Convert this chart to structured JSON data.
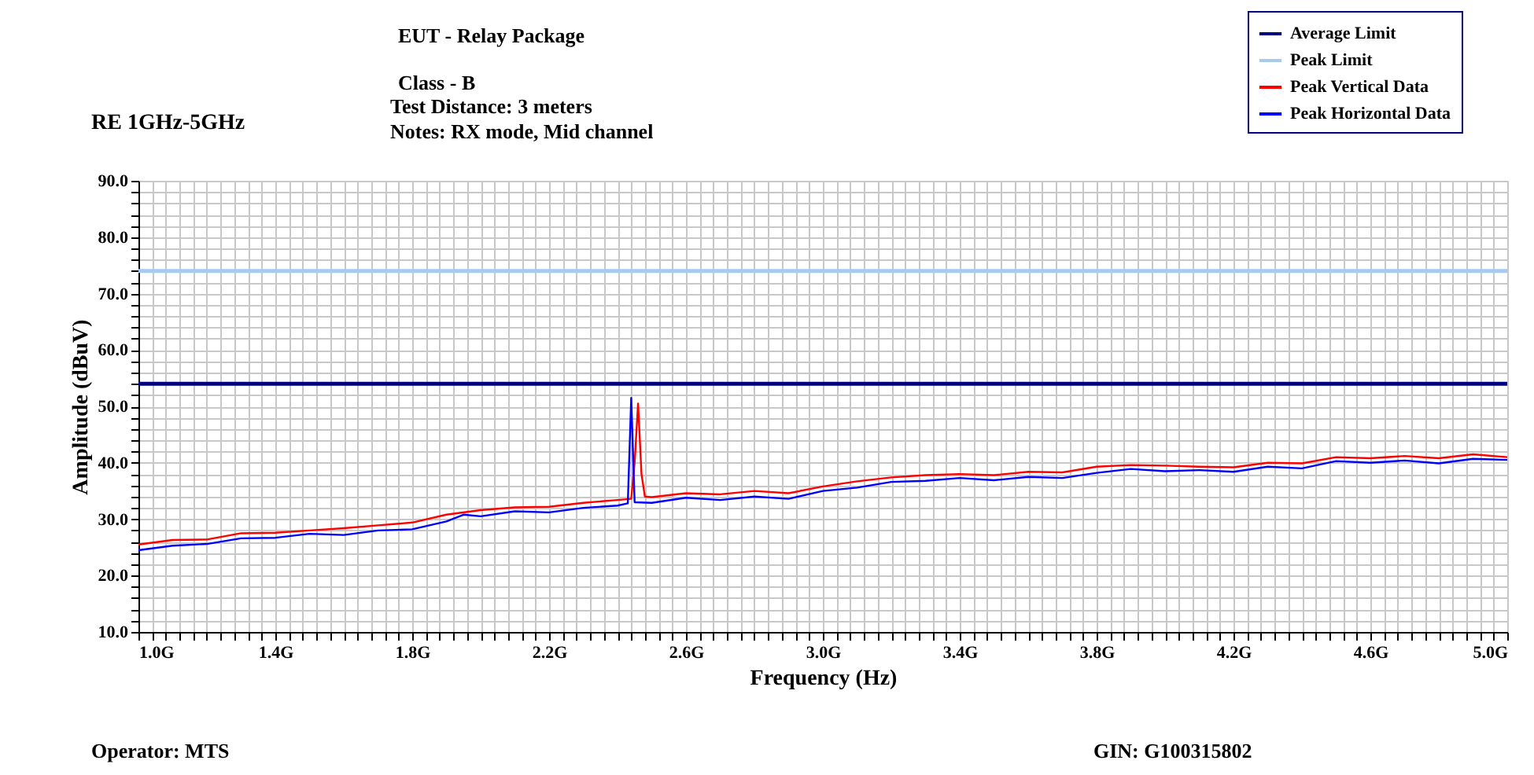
{
  "chart_data": {
    "type": "line",
    "title": "RE 1GHz-5GHz",
    "xlabel": "Frequency (Hz)",
    "ylabel": "Amplitude (dBuV)",
    "xlim": [
      1.0,
      5.0
    ],
    "ylim": [
      10.0,
      90.0
    ],
    "xticks": [
      {
        "value": 1.0,
        "label": "1.0G"
      },
      {
        "value": 1.04,
        "label": null
      },
      {
        "value": 1.08,
        "label": null
      },
      {
        "value": 1.12,
        "label": null
      },
      {
        "value": 1.16,
        "label": null
      },
      {
        "value": 1.2,
        "label": null
      },
      {
        "value": 1.24,
        "label": null
      },
      {
        "value": 1.28,
        "label": null
      },
      {
        "value": 1.32,
        "label": null
      },
      {
        "value": 1.36,
        "label": null
      },
      {
        "value": 1.4,
        "label": "1.4G"
      },
      {
        "value": 1.44,
        "label": null
      },
      {
        "value": 1.48,
        "label": null
      },
      {
        "value": 1.52,
        "label": null
      },
      {
        "value": 1.56,
        "label": null
      },
      {
        "value": 1.6,
        "label": null
      },
      {
        "value": 1.64,
        "label": null
      },
      {
        "value": 1.68,
        "label": null
      },
      {
        "value": 1.72,
        "label": null
      },
      {
        "value": 1.76,
        "label": null
      },
      {
        "value": 1.8,
        "label": "1.8G"
      },
      {
        "value": 1.84,
        "label": null
      },
      {
        "value": 1.88,
        "label": null
      },
      {
        "value": 1.92,
        "label": null
      },
      {
        "value": 1.96,
        "label": null
      },
      {
        "value": 2.0,
        "label": null
      },
      {
        "value": 2.04,
        "label": null
      },
      {
        "value": 2.08,
        "label": null
      },
      {
        "value": 2.12,
        "label": null
      },
      {
        "value": 2.16,
        "label": null
      },
      {
        "value": 2.2,
        "label": "2.2G"
      },
      {
        "value": 2.24,
        "label": null
      },
      {
        "value": 2.28,
        "label": null
      },
      {
        "value": 2.32,
        "label": null
      },
      {
        "value": 2.36,
        "label": null
      },
      {
        "value": 2.4,
        "label": null
      },
      {
        "value": 2.44,
        "label": null
      },
      {
        "value": 2.48,
        "label": null
      },
      {
        "value": 2.52,
        "label": null
      },
      {
        "value": 2.56,
        "label": null
      },
      {
        "value": 2.6,
        "label": "2.6G"
      },
      {
        "value": 2.64,
        "label": null
      },
      {
        "value": 2.68,
        "label": null
      },
      {
        "value": 2.72,
        "label": null
      },
      {
        "value": 2.76,
        "label": null
      },
      {
        "value": 2.8,
        "label": null
      },
      {
        "value": 2.84,
        "label": null
      },
      {
        "value": 2.88,
        "label": null
      },
      {
        "value": 2.92,
        "label": null
      },
      {
        "value": 2.96,
        "label": null
      },
      {
        "value": 3.0,
        "label": "3.0G"
      },
      {
        "value": 3.04,
        "label": null
      },
      {
        "value": 3.08,
        "label": null
      },
      {
        "value": 3.12,
        "label": null
      },
      {
        "value": 3.16,
        "label": null
      },
      {
        "value": 3.2,
        "label": null
      },
      {
        "value": 3.24,
        "label": null
      },
      {
        "value": 3.28,
        "label": null
      },
      {
        "value": 3.32,
        "label": null
      },
      {
        "value": 3.36,
        "label": null
      },
      {
        "value": 3.4,
        "label": "3.4G"
      },
      {
        "value": 3.44,
        "label": null
      },
      {
        "value": 3.48,
        "label": null
      },
      {
        "value": 3.52,
        "label": null
      },
      {
        "value": 3.56,
        "label": null
      },
      {
        "value": 3.6,
        "label": null
      },
      {
        "value": 3.64,
        "label": null
      },
      {
        "value": 3.68,
        "label": null
      },
      {
        "value": 3.72,
        "label": null
      },
      {
        "value": 3.76,
        "label": null
      },
      {
        "value": 3.8,
        "label": "3.8G"
      },
      {
        "value": 3.84,
        "label": null
      },
      {
        "value": 3.88,
        "label": null
      },
      {
        "value": 3.92,
        "label": null
      },
      {
        "value": 3.96,
        "label": null
      },
      {
        "value": 4.0,
        "label": null
      },
      {
        "value": 4.04,
        "label": null
      },
      {
        "value": 4.08,
        "label": null
      },
      {
        "value": 4.12,
        "label": null
      },
      {
        "value": 4.16,
        "label": null
      },
      {
        "value": 4.2,
        "label": "4.2G"
      },
      {
        "value": 4.24,
        "label": null
      },
      {
        "value": 4.28,
        "label": null
      },
      {
        "value": 4.32,
        "label": null
      },
      {
        "value": 4.36,
        "label": null
      },
      {
        "value": 4.4,
        "label": null
      },
      {
        "value": 4.44,
        "label": null
      },
      {
        "value": 4.48,
        "label": null
      },
      {
        "value": 4.52,
        "label": null
      },
      {
        "value": 4.56,
        "label": null
      },
      {
        "value": 4.6,
        "label": "4.6G"
      },
      {
        "value": 4.64,
        "label": null
      },
      {
        "value": 4.68,
        "label": null
      },
      {
        "value": 4.72,
        "label": null
      },
      {
        "value": 4.76,
        "label": null
      },
      {
        "value": 4.8,
        "label": null
      },
      {
        "value": 4.84,
        "label": null
      },
      {
        "value": 4.88,
        "label": null
      },
      {
        "value": 4.92,
        "label": null
      },
      {
        "value": 4.96,
        "label": null
      },
      {
        "value": 5.0,
        "label": "5.0G"
      }
    ],
    "yticks": [
      {
        "value": 10,
        "label": "10.0"
      },
      {
        "value": 12,
        "label": null
      },
      {
        "value": 14,
        "label": null
      },
      {
        "value": 16,
        "label": null
      },
      {
        "value": 18,
        "label": null
      },
      {
        "value": 20,
        "label": "20.0"
      },
      {
        "value": 22,
        "label": null
      },
      {
        "value": 24,
        "label": null
      },
      {
        "value": 26,
        "label": null
      },
      {
        "value": 28,
        "label": null
      },
      {
        "value": 30,
        "label": "30.0"
      },
      {
        "value": 32,
        "label": null
      },
      {
        "value": 34,
        "label": null
      },
      {
        "value": 36,
        "label": null
      },
      {
        "value": 38,
        "label": null
      },
      {
        "value": 40,
        "label": "40.0"
      },
      {
        "value": 42,
        "label": null
      },
      {
        "value": 44,
        "label": null
      },
      {
        "value": 46,
        "label": null
      },
      {
        "value": 48,
        "label": null
      },
      {
        "value": 50,
        "label": "50.0"
      },
      {
        "value": 52,
        "label": null
      },
      {
        "value": 54,
        "label": null
      },
      {
        "value": 56,
        "label": null
      },
      {
        "value": 58,
        "label": null
      },
      {
        "value": 60,
        "label": "60.0"
      },
      {
        "value": 62,
        "label": null
      },
      {
        "value": 64,
        "label": null
      },
      {
        "value": 66,
        "label": null
      },
      {
        "value": 68,
        "label": null
      },
      {
        "value": 70,
        "label": "70.0"
      },
      {
        "value": 72,
        "label": null
      },
      {
        "value": 74,
        "label": null
      },
      {
        "value": 76,
        "label": null
      },
      {
        "value": 78,
        "label": null
      },
      {
        "value": 80,
        "label": "80.0"
      },
      {
        "value": 82,
        "label": null
      },
      {
        "value": 84,
        "label": null
      },
      {
        "value": 86,
        "label": null
      },
      {
        "value": 88,
        "label": null
      },
      {
        "value": 90,
        "label": "90.0"
      }
    ],
    "grid": true,
    "legend": "top right",
    "marker": "none",
    "line_style": "solid",
    "series": [
      {
        "name": "Average Limit",
        "color": "#000080",
        "x": [
          1.0,
          5.0
        ],
        "values": [
          54,
          54
        ]
      },
      {
        "name": "Peak Limit",
        "color": "#a6caf0",
        "x": [
          1.0,
          5.0
        ],
        "values": [
          74,
          74
        ]
      },
      {
        "name": "Peak Vertical Data",
        "color": "#ff0000",
        "x": [
          1.0,
          1.1,
          1.2,
          1.3,
          1.4,
          1.5,
          1.6,
          1.7,
          1.8,
          1.9,
          2.0,
          2.1,
          2.2,
          2.3,
          2.4,
          2.44,
          2.45,
          2.46,
          2.47,
          2.48,
          2.5,
          2.6,
          2.7,
          2.8,
          2.9,
          3.0,
          3.1,
          3.2,
          3.3,
          3.4,
          3.5,
          3.6,
          3.7,
          3.8,
          3.9,
          4.0,
          4.1,
          4.2,
          4.3,
          4.4,
          4.5,
          4.6,
          4.7,
          4.8,
          4.9,
          5.0
        ],
        "values": [
          25.5,
          26.3,
          26.4,
          27.5,
          27.6,
          28.0,
          28.4,
          28.9,
          29.4,
          30.8,
          31.6,
          32.1,
          32.2,
          32.9,
          33.4,
          33.6,
          40.0,
          50.5,
          38.0,
          34.0,
          33.9,
          34.6,
          34.4,
          35.0,
          34.6,
          35.8,
          36.7,
          37.4,
          37.8,
          38.0,
          37.8,
          38.4,
          38.3,
          39.3,
          39.6,
          39.5,
          39.3,
          39.2,
          40.0,
          39.9,
          41.0,
          40.8,
          41.2,
          40.8,
          41.5,
          41.0
        ]
      },
      {
        "name": "Peak Horizontal Data",
        "color": "#0000ff",
        "x": [
          1.0,
          1.1,
          1.2,
          1.3,
          1.4,
          1.5,
          1.6,
          1.7,
          1.8,
          1.9,
          1.95,
          2.0,
          2.1,
          2.2,
          2.3,
          2.4,
          2.43,
          2.44,
          2.45,
          2.5,
          2.6,
          2.7,
          2.8,
          2.9,
          3.0,
          3.1,
          3.2,
          3.3,
          3.4,
          3.5,
          3.6,
          3.7,
          3.8,
          3.9,
          4.0,
          4.1,
          4.2,
          4.3,
          4.4,
          4.5,
          4.6,
          4.7,
          4.8,
          4.9,
          5.0
        ],
        "values": [
          24.5,
          25.3,
          25.6,
          26.6,
          26.7,
          27.4,
          27.2,
          28.0,
          28.2,
          29.6,
          30.8,
          30.5,
          31.4,
          31.2,
          32.0,
          32.4,
          32.8,
          51.5,
          33.0,
          32.9,
          33.8,
          33.4,
          34.0,
          33.6,
          35.0,
          35.6,
          36.6,
          36.8,
          37.3,
          36.9,
          37.5,
          37.3,
          38.2,
          38.9,
          38.5,
          38.7,
          38.4,
          39.3,
          39.0,
          40.3,
          40.0,
          40.4,
          39.9,
          40.7,
          40.5
        ]
      }
    ],
    "annotations": [
      "EUT - Relay Package",
      "Class - B",
      "Test Distance: 3 meters",
      "Notes:  RX mode, Mid channel",
      "Operator: MTS",
      "GIN: G100315802"
    ]
  }
}
